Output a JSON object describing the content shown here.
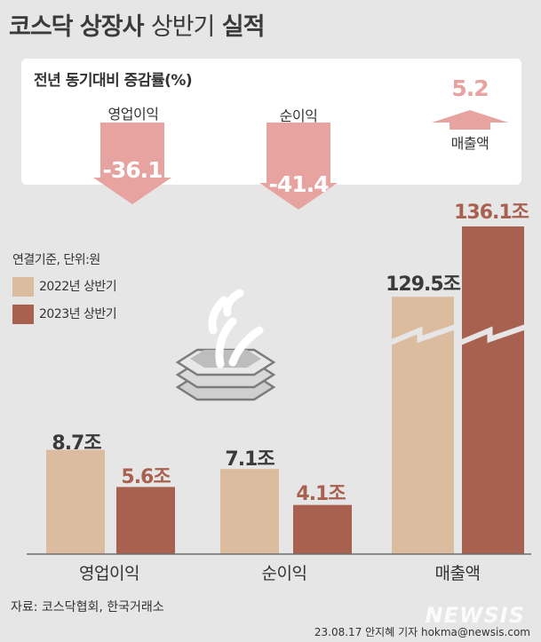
{
  "header": {
    "title_bold": "코스닥 상장사",
    "title_light": "상반기",
    "title_bold2": "실적"
  },
  "yoy": {
    "title": "전년 동기대비 증감률(%)",
    "items": [
      {
        "label": "영업이익",
        "value": "-36.1",
        "direction": "down"
      },
      {
        "label": "순이익",
        "value": "-41.4",
        "direction": "down"
      },
      {
        "label": "매출액",
        "value": "5.2",
        "direction": "up"
      }
    ]
  },
  "legend": {
    "note": "연결기준, 단위:원",
    "items": [
      {
        "label": "2022년 상반기",
        "color": "#dcbc9f"
      },
      {
        "label": "2023년 상반기",
        "color": "#a9614f"
      }
    ]
  },
  "chart_data": {
    "type": "bar",
    "categories": [
      "영업이익",
      "순이익",
      "매출액"
    ],
    "series": [
      {
        "name": "2022년 상반기",
        "values": [
          8.7,
          7.1,
          129.5
        ],
        "labels": [
          "8.7조",
          "7.1조",
          "129.5조"
        ]
      },
      {
        "name": "2023년 상반기",
        "values": [
          5.6,
          4.1,
          136.1
        ],
        "labels": [
          "5.6조",
          "4.1조",
          "136.1조"
        ]
      }
    ],
    "yoy_change_pct": [
      -36.1,
      -41.4,
      5.2
    ],
    "unit": "조",
    "axis_break": "매출액"
  },
  "colors": {
    "y2022": "#dcbc9f",
    "y2023": "#a9614f",
    "arrow": "#e6a3a0",
    "label2023": "#a9614f"
  },
  "footer": {
    "source": "자료: 코스닥협회, 한국거래소",
    "credit": "23.08.17 안지혜 기자 hokma@newsis.com",
    "watermark": "NEWSIS"
  }
}
